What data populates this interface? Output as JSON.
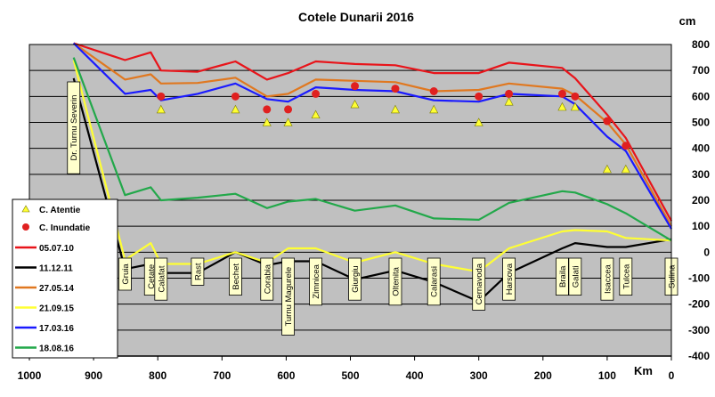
{
  "chart_data": {
    "type": "line",
    "title": "Cotele Dunarii 2016",
    "xlabel": "Km",
    "ylabel": "cm",
    "xlim": [
      1000,
      0
    ],
    "ylim": [
      -400,
      800
    ],
    "x_ticks": [
      1000,
      900,
      800,
      700,
      600,
      500,
      400,
      300,
      200,
      100,
      0
    ],
    "y_ticks": [
      800,
      700,
      600,
      500,
      400,
      300,
      200,
      100,
      0,
      -100,
      -200,
      -300,
      -400
    ],
    "grid": true,
    "legend_position": "left",
    "locations": [
      {
        "name": "Dr. Turnu Severin",
        "km": 931
      },
      {
        "name": "Gruia",
        "km": 851
      },
      {
        "name": "Cetate",
        "km": 811
      },
      {
        "name": "Calafat",
        "km": 795
      },
      {
        "name": "Rast",
        "km": 738
      },
      {
        "name": "Bechet",
        "km": 679
      },
      {
        "name": "Corabia",
        "km": 630
      },
      {
        "name": "Turnu Magurele",
        "km": 597
      },
      {
        "name": "Zimnicea",
        "km": 554
      },
      {
        "name": "Giurgiu",
        "km": 493
      },
      {
        "name": "Oltenita",
        "km": 430
      },
      {
        "name": "Calarasi",
        "km": 370
      },
      {
        "name": "Cernavoda",
        "km": 300
      },
      {
        "name": "Harsova",
        "km": 253
      },
      {
        "name": "Braila",
        "km": 170
      },
      {
        "name": "Galati",
        "km": 150
      },
      {
        "name": "Isaccea",
        "km": 100
      },
      {
        "name": "Tulcea",
        "km": 71
      },
      {
        "name": "Sulina",
        "km": 0
      }
    ],
    "x": [
      931,
      851,
      811,
      795,
      738,
      679,
      630,
      597,
      554,
      493,
      430,
      370,
      300,
      253,
      170,
      150,
      100,
      71,
      0
    ],
    "series": [
      {
        "name": "05.07.10",
        "color": "#e8141a",
        "values": [
          805,
          740,
          770,
          700,
          695,
          735,
          665,
          690,
          735,
          725,
          720,
          690,
          690,
          730,
          710,
          670,
          530,
          440,
          120
        ]
      },
      {
        "name": "11.12.11",
        "color": "#000000",
        "values": [
          670,
          -65,
          -45,
          -80,
          -80,
          0,
          -50,
          -35,
          -35,
          -105,
          -70,
          -115,
          -190,
          -80,
          15,
          35,
          20,
          20,
          50
        ]
      },
      {
        "name": "27.05.14",
        "color": "#e07820",
        "values": [
          805,
          665,
          685,
          650,
          652,
          672,
          600,
          610,
          665,
          660,
          655,
          620,
          625,
          650,
          630,
          605,
          500,
          415,
          100
        ]
      },
      {
        "name": "21.09.15",
        "color": "#ffff33",
        "values": [
          740,
          -30,
          35,
          -45,
          -45,
          0,
          -40,
          15,
          15,
          -40,
          0,
          -45,
          -75,
          15,
          80,
          85,
          80,
          55,
          45
        ]
      },
      {
        "name": "17.03.16",
        "color": "#1a1aff",
        "values": [
          805,
          610,
          625,
          585,
          610,
          650,
          590,
          580,
          635,
          625,
          620,
          585,
          580,
          610,
          600,
          570,
          445,
          390,
          90
        ]
      },
      {
        "name": "18.08.16",
        "color": "#22a84a",
        "values": [
          750,
          220,
          250,
          200,
          210,
          225,
          170,
          195,
          205,
          160,
          180,
          130,
          125,
          190,
          235,
          230,
          185,
          150,
          45
        ]
      }
    ],
    "markers": [
      {
        "name": "C. Atentie",
        "shape": "triangle",
        "color": "#ffff33",
        "points": [
          [
            795,
            550
          ],
          [
            679,
            550
          ],
          [
            630,
            500
          ],
          [
            597,
            500
          ],
          [
            554,
            530
          ],
          [
            493,
            570
          ],
          [
            430,
            550
          ],
          [
            370,
            550
          ],
          [
            300,
            500
          ],
          [
            253,
            580
          ],
          [
            170,
            560
          ],
          [
            150,
            560
          ],
          [
            100,
            320
          ],
          [
            71,
            320
          ]
        ]
      },
      {
        "name": "C. Inundatie",
        "shape": "circle",
        "color": "#e02020",
        "points": [
          [
            795,
            600
          ],
          [
            679,
            600
          ],
          [
            630,
            550
          ],
          [
            597,
            550
          ],
          [
            554,
            610
          ],
          [
            493,
            640
          ],
          [
            430,
            630
          ],
          [
            370,
            620
          ],
          [
            300,
            600
          ],
          [
            253,
            610
          ],
          [
            170,
            610
          ],
          [
            150,
            600
          ],
          [
            100,
            505
          ],
          [
            71,
            410
          ]
        ]
      }
    ]
  }
}
